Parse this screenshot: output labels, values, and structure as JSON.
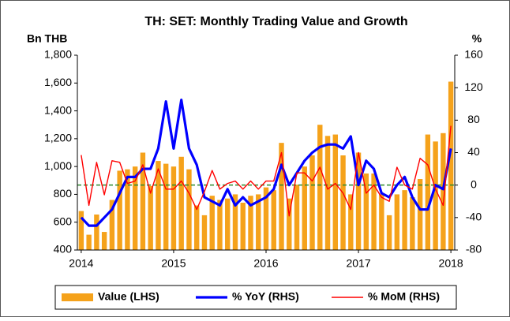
{
  "chart_data": {
    "type": "bar-line",
    "title": "TH: SET: Monthly Trading Value and Growth",
    "y_label": "Bn THB",
    "y2_label": "%",
    "categories": [
      "2014",
      null,
      null,
      null,
      null,
      null,
      null,
      null,
      null,
      null,
      null,
      null,
      "2015",
      null,
      null,
      null,
      null,
      null,
      null,
      null,
      null,
      null,
      null,
      null,
      "2016",
      null,
      null,
      null,
      null,
      null,
      null,
      null,
      null,
      null,
      null,
      null,
      "2017",
      null,
      null,
      null,
      null,
      null,
      null,
      null,
      null,
      null,
      null,
      null,
      "2018"
    ],
    "series": [
      {
        "name": "Value (LHS)",
        "type": "bar",
        "color": "#f5a21b",
        "axis": "y",
        "values": [
          680,
          510,
          655,
          530,
          760,
          970,
          980,
          1000,
          1100,
          860,
          1040,
          1020,
          1000,
          1070,
          980,
          720,
          650,
          790,
          760,
          770,
          800,
          740,
          790,
          800,
          850,
          830,
          1170,
          770,
          870,
          1000,
          1080,
          1300,
          1220,
          1230,
          1080,
          800,
          1100,
          950,
          950,
          800,
          650,
          800,
          830,
          780,
          910,
          1230,
          1180,
          1240,
          1610
        ]
      },
      {
        "name": "% YoY (RHS)",
        "type": "line",
        "color": "#0000ff",
        "axis": "y2",
        "values": [
          -40,
          -50,
          -50,
          -40,
          -30,
          -10,
          10,
          10,
          20,
          20,
          45,
          103,
          45,
          105,
          45,
          25,
          -15,
          -20,
          -25,
          -5,
          -25,
          -15,
          -25,
          -20,
          -15,
          -5,
          25,
          0,
          15,
          30,
          40,
          47,
          50,
          50,
          45,
          60,
          0,
          30,
          20,
          -10,
          -15,
          0,
          10,
          -15,
          -30,
          -30,
          0,
          -5,
          45
        ]
      },
      {
        "name": "% MoM (RHS)",
        "type": "line",
        "color": "#ff0000",
        "axis": "y2",
        "values": [
          37,
          -25,
          28,
          -12,
          30,
          28,
          2,
          5,
          25,
          -10,
          20,
          -5,
          -5,
          5,
          -10,
          -30,
          -8,
          18,
          -5,
          2,
          5,
          -5,
          5,
          -5,
          5,
          5,
          40,
          -38,
          15,
          15,
          5,
          22,
          -5,
          2,
          -10,
          -30,
          40,
          -10,
          0,
          -15,
          -20,
          22,
          0,
          -5,
          33,
          25,
          -5,
          -25,
          73
        ]
      }
    ],
    "ylim": [
      400,
      1800
    ],
    "yticks": [
      400,
      600,
      800,
      {
        "value": 1000,
        "label": "1,000"
      },
      {
        "value": 1200,
        "label": "1,200"
      },
      {
        "value": 1400,
        "label": "1,400"
      },
      {
        "value": 1600,
        "label": "1,600"
      },
      {
        "value": 1800,
        "label": "1,800"
      }
    ],
    "y2lim": [
      -80,
      160
    ],
    "y2ticks": [
      -80,
      -40,
      0,
      40,
      80,
      120,
      160
    ],
    "legend": "bottom"
  }
}
